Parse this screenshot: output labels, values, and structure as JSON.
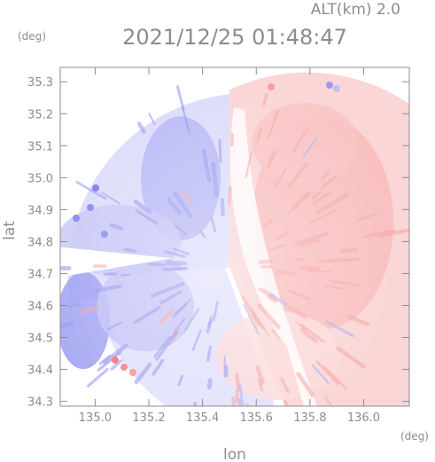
{
  "header": {
    "alt_label": "ALT(km) 2.0",
    "datetime": "2021/12/25 01:48:47",
    "y_unit": "(deg)",
    "x_unit": "(deg)"
  },
  "chart_data": {
    "type": "heatmap",
    "title": "2021/12/25 01:48:47",
    "subtitle": "ALT(km) 2.0",
    "xlabel": "lon",
    "ylabel": "lat",
    "xlim": [
      134.87,
      136.17
    ],
    "ylim": [
      34.285,
      35.345
    ],
    "x_ticks": [
      135.0,
      135.2,
      135.4,
      135.6,
      135.8,
      136.0
    ],
    "x_tick_labels": [
      "135.0",
      "135.2",
      "135.4",
      "135.6",
      "135.8",
      "136.0"
    ],
    "y_ticks": [
      34.3,
      34.4,
      34.5,
      34.6,
      34.7,
      34.8,
      34.9,
      35.0,
      35.1,
      35.2,
      35.3
    ],
    "y_tick_labels": [
      "34.3",
      "34.4",
      "34.5",
      "34.6",
      "34.7",
      "34.8",
      "34.9",
      "35.0",
      "35.1",
      "35.2",
      "35.3"
    ],
    "radar_center": [
      135.55,
      34.72
    ],
    "colors": {
      "negative": "#7f7ff0",
      "positive": "#f59a9a",
      "neutral": "#ffffff",
      "frame": "#8c8c8c"
    }
  }
}
